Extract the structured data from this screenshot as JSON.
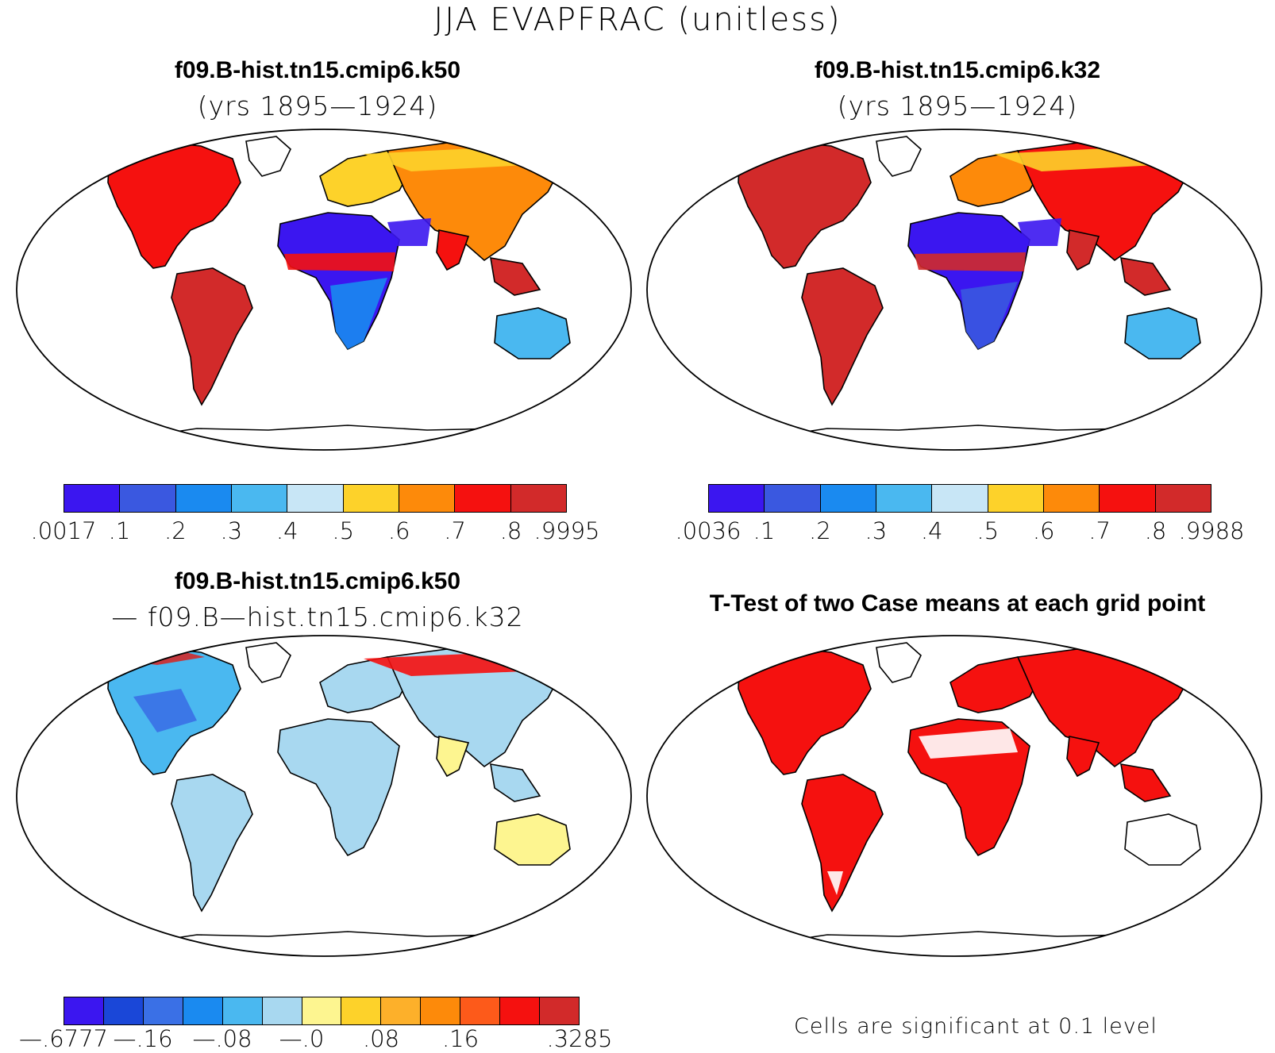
{
  "figure_title": "JJA EVAPFRAC (unitless)",
  "colors": {
    "scale_abs": [
      "#3b16f0",
      "#3a58e0",
      "#1a8af0",
      "#4ab8f0",
      "#c8e6f6",
      "#fdd22a",
      "#fd8a0a",
      "#f5110f",
      "#d22a2a"
    ],
    "scale_diff": [
      "#3b16f0",
      "#1a47d8",
      "#3a70e6",
      "#1a8af0",
      "#4ab8f0",
      "#a8d8f0",
      "#fdf590",
      "#fdd22a",
      "#fdb02a",
      "#fd8a0a",
      "#fd5a1a",
      "#f5110f",
      "#d22a2a"
    ],
    "significant": "#f5110f",
    "land_a": "#fd8a0a",
    "land_b": "#4ab8f0",
    "land_c": "#a8d8f0"
  },
  "panels": [
    {
      "id": "k50",
      "title_line1": "f09.B-hist.tn15.cmip6.k50",
      "title_line2": "(yrs 1895—1924)",
      "colorbar_labels": [
        ".0017",
        ".1",
        ".2",
        ".3",
        ".4",
        ".5",
        ".6",
        ".7",
        ".8",
        ".9995"
      ]
    },
    {
      "id": "k32",
      "title_line1": "f09.B-hist.tn15.cmip6.k32",
      "title_line2": "(yrs 1895—1924)",
      "colorbar_labels": [
        ".0036",
        ".1",
        ".2",
        ".3",
        ".4",
        ".5",
        ".6",
        ".7",
        ".8",
        ".9988"
      ]
    },
    {
      "id": "diff",
      "title_line1": "f09.B-hist.tn15.cmip6.k50",
      "title_line2": "— f09.B—hist.tn15.cmip6.k32",
      "colorbar_labels": [
        "—.6777",
        "—.16",
        "—.08",
        "—.0",
        ".08",
        ".16",
        ".3285"
      ]
    },
    {
      "id": "ttest",
      "title_line1": "T-Test of two Case means at each grid point",
      "note": "Cells are significant at 0.1 level"
    }
  ]
}
